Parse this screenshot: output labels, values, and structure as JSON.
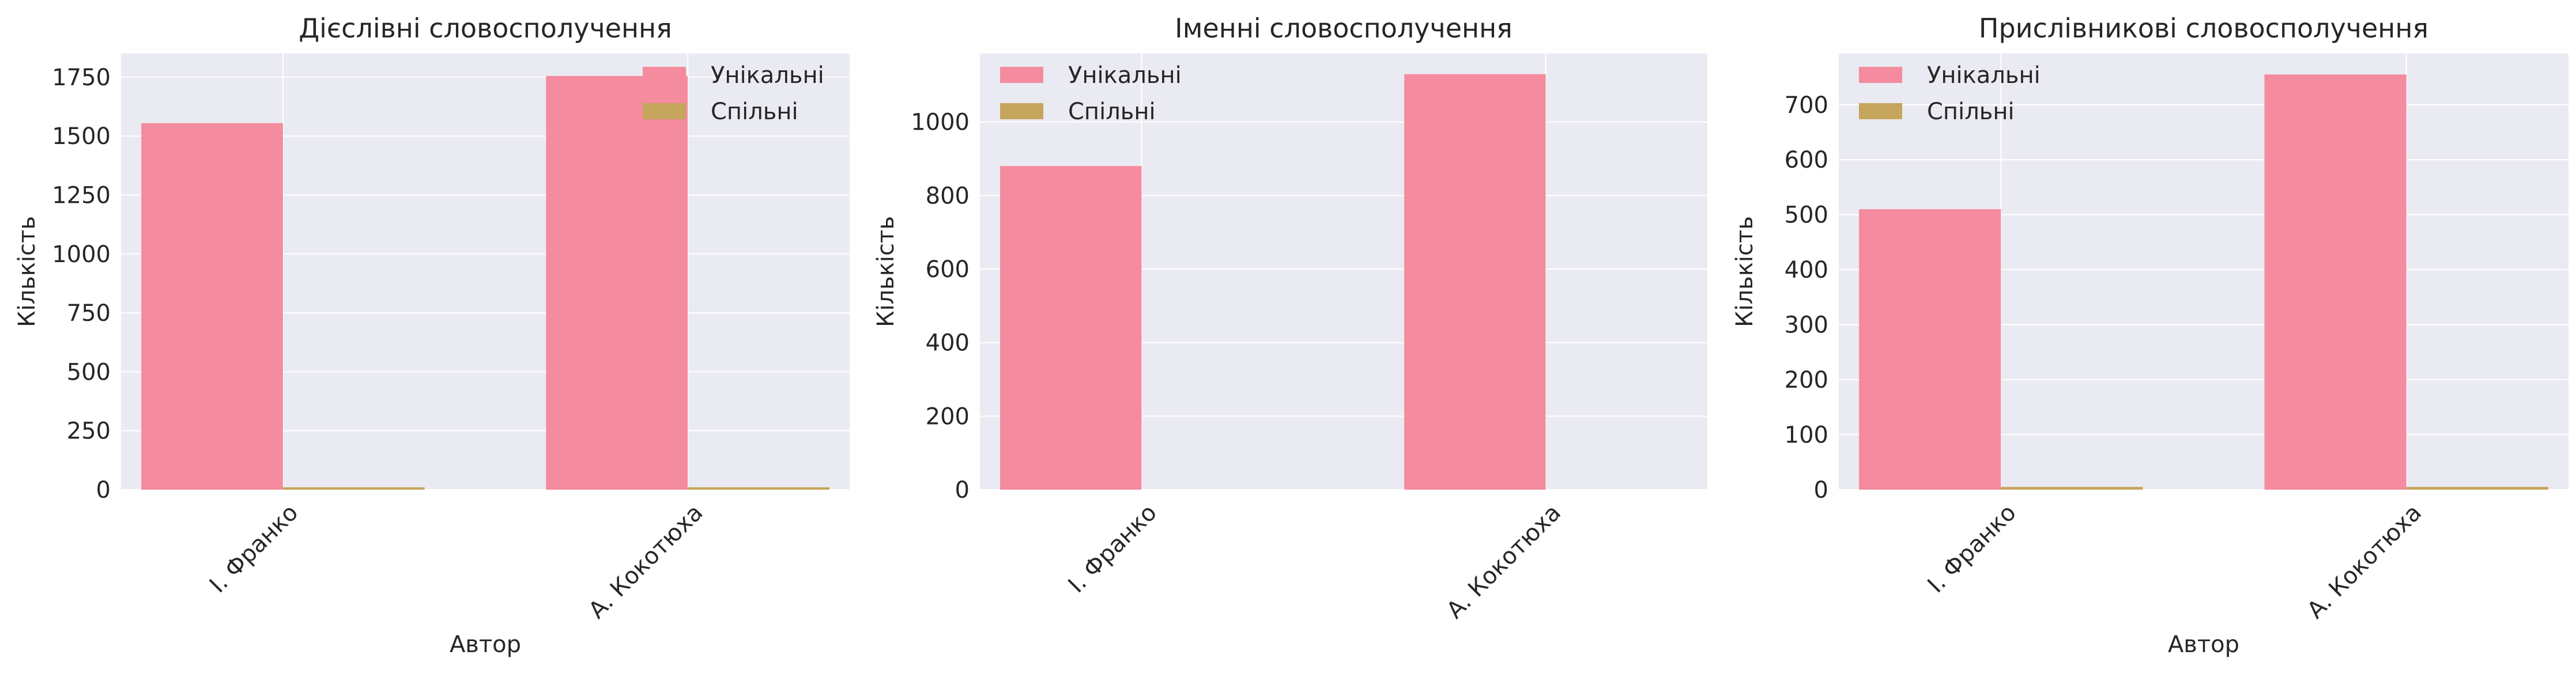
{
  "colors": {
    "unique": "#f48b9e",
    "shared": "#c6a55c",
    "plot_bg": "#eaeaf2",
    "grid": "#ffffff"
  },
  "chart_data": [
    {
      "type": "bar",
      "title": "Дієслівні словосполучення",
      "xlabel": "Автор",
      "ylabel": "Кількість",
      "categories": [
        "І. Франко",
        "А. Кокотюха"
      ],
      "series": [
        {
          "name": "Унікальні",
          "values": [
            1555,
            1755
          ]
        },
        {
          "name": "Спільні",
          "values": [
            10,
            10
          ]
        }
      ],
      "ylim": [
        0,
        1850
      ],
      "yticks": [
        0,
        250,
        500,
        750,
        1000,
        1250,
        1500,
        1750
      ],
      "legend": "top-right",
      "grid": true
    },
    {
      "type": "bar",
      "title": "Іменні словосполучення",
      "xlabel": "",
      "ylabel": "Кількість",
      "categories": [
        "І. Франко",
        "А. Кокотюха"
      ],
      "series": [
        {
          "name": "Унікальні",
          "values": [
            880,
            1130
          ]
        },
        {
          "name": "Спільні",
          "values": [
            0,
            0
          ]
        }
      ],
      "ylim": [
        0,
        1186
      ],
      "yticks": [
        0,
        200,
        400,
        600,
        800,
        1000
      ],
      "legend": "top-left",
      "grid": true
    },
    {
      "type": "bar",
      "title": "Прислівникові словосполучення",
      "xlabel": "Автор",
      "ylabel": "Кількість",
      "categories": [
        "І. Франко",
        "А. Кокотюха"
      ],
      "series": [
        {
          "name": "Унікальні",
          "values": [
            510,
            755
          ]
        },
        {
          "name": "Спільні",
          "values": [
            5,
            5
          ]
        }
      ],
      "ylim": [
        0,
        793
      ],
      "yticks": [
        0,
        100,
        200,
        300,
        400,
        500,
        600,
        700
      ],
      "legend": "top-left",
      "grid": true
    }
  ]
}
